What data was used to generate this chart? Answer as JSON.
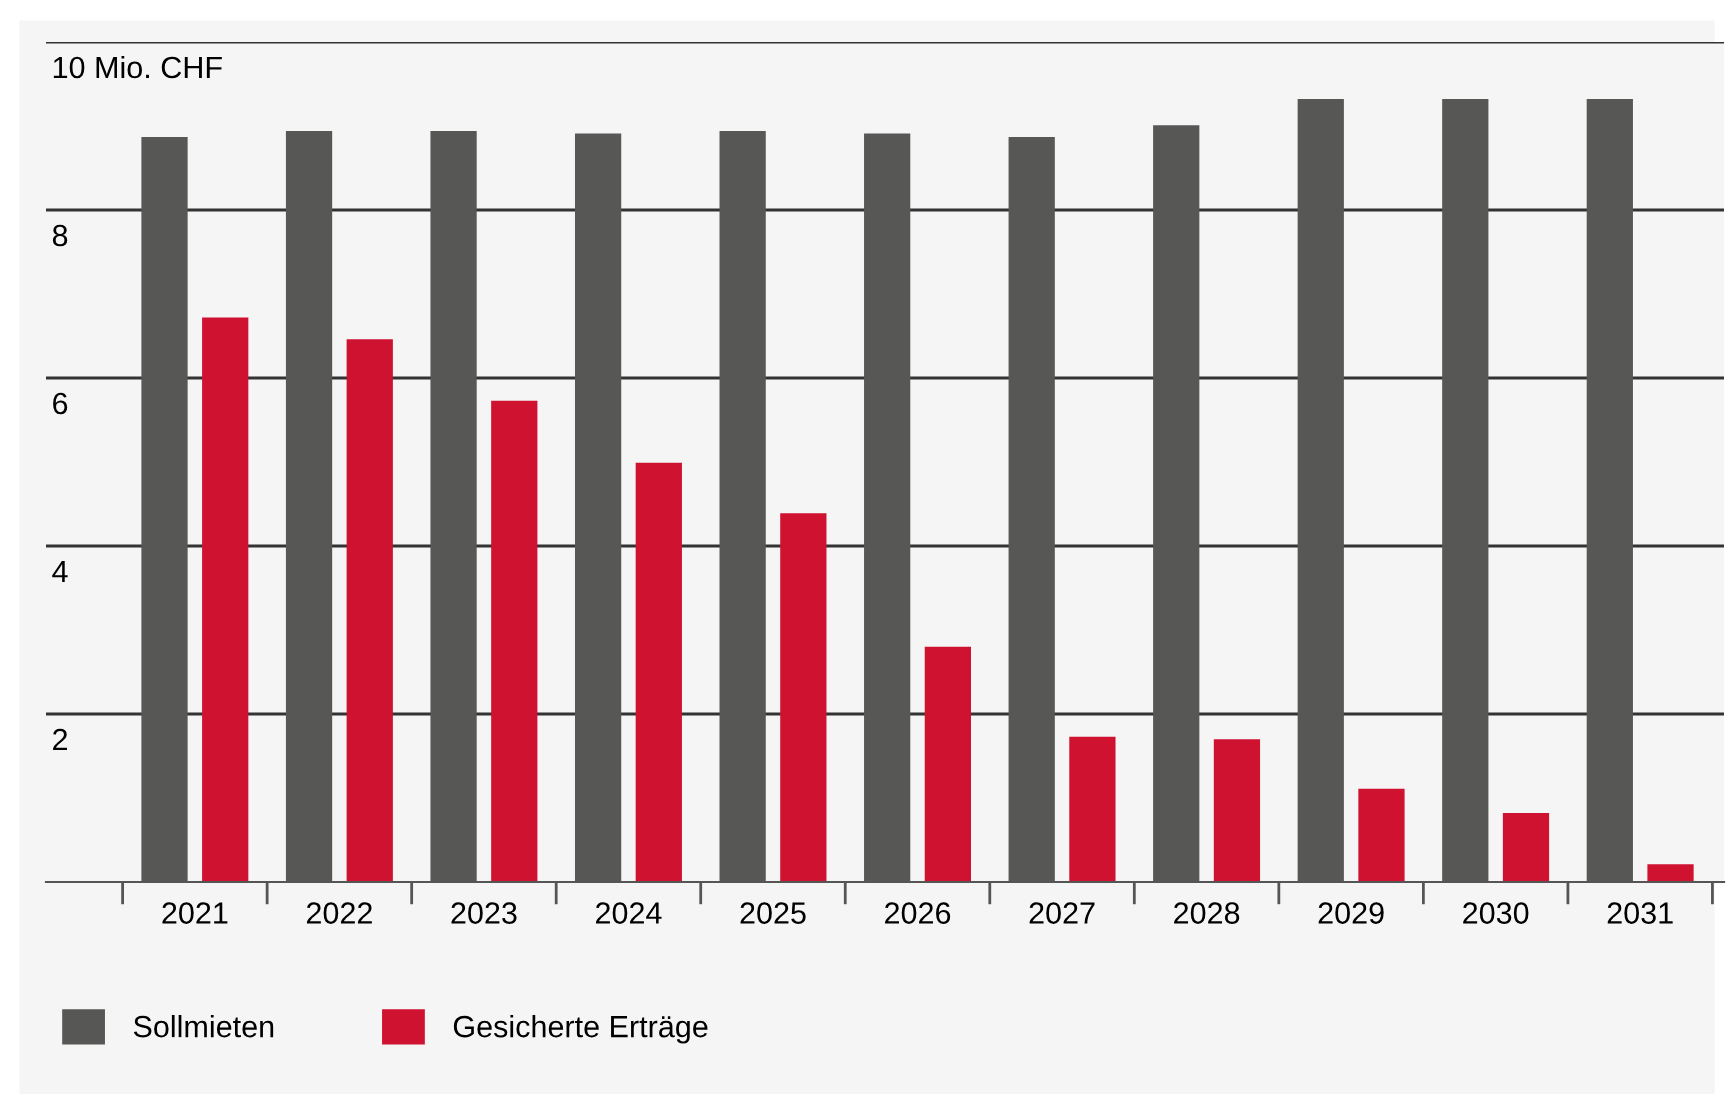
{
  "chart_data": {
    "type": "bar",
    "categories": [
      "2021",
      "2022",
      "2023",
      "2024",
      "2025",
      "2026",
      "2027",
      "2028",
      "2029",
      "2030",
      "2031"
    ],
    "series": [
      {
        "name": "Sollmieten",
        "color": "#575756",
        "values": [
          8.87,
          8.94,
          8.94,
          8.91,
          8.94,
          8.91,
          8.87,
          9.01,
          9.32,
          9.32,
          9.32
        ]
      },
      {
        "name": "Gesicherte Erträge",
        "color": "#cf1230",
        "values": [
          6.72,
          6.46,
          5.73,
          4.99,
          4.39,
          2.8,
          1.73,
          1.7,
          1.11,
          0.82,
          0.21
        ]
      }
    ],
    "ylim": [
      0,
      10
    ],
    "yticks": [
      2,
      4,
      6,
      8,
      {
        "value": 10,
        "label": "10 Mio. CHF"
      }
    ],
    "grid": "y",
    "legend": "bottom left"
  }
}
